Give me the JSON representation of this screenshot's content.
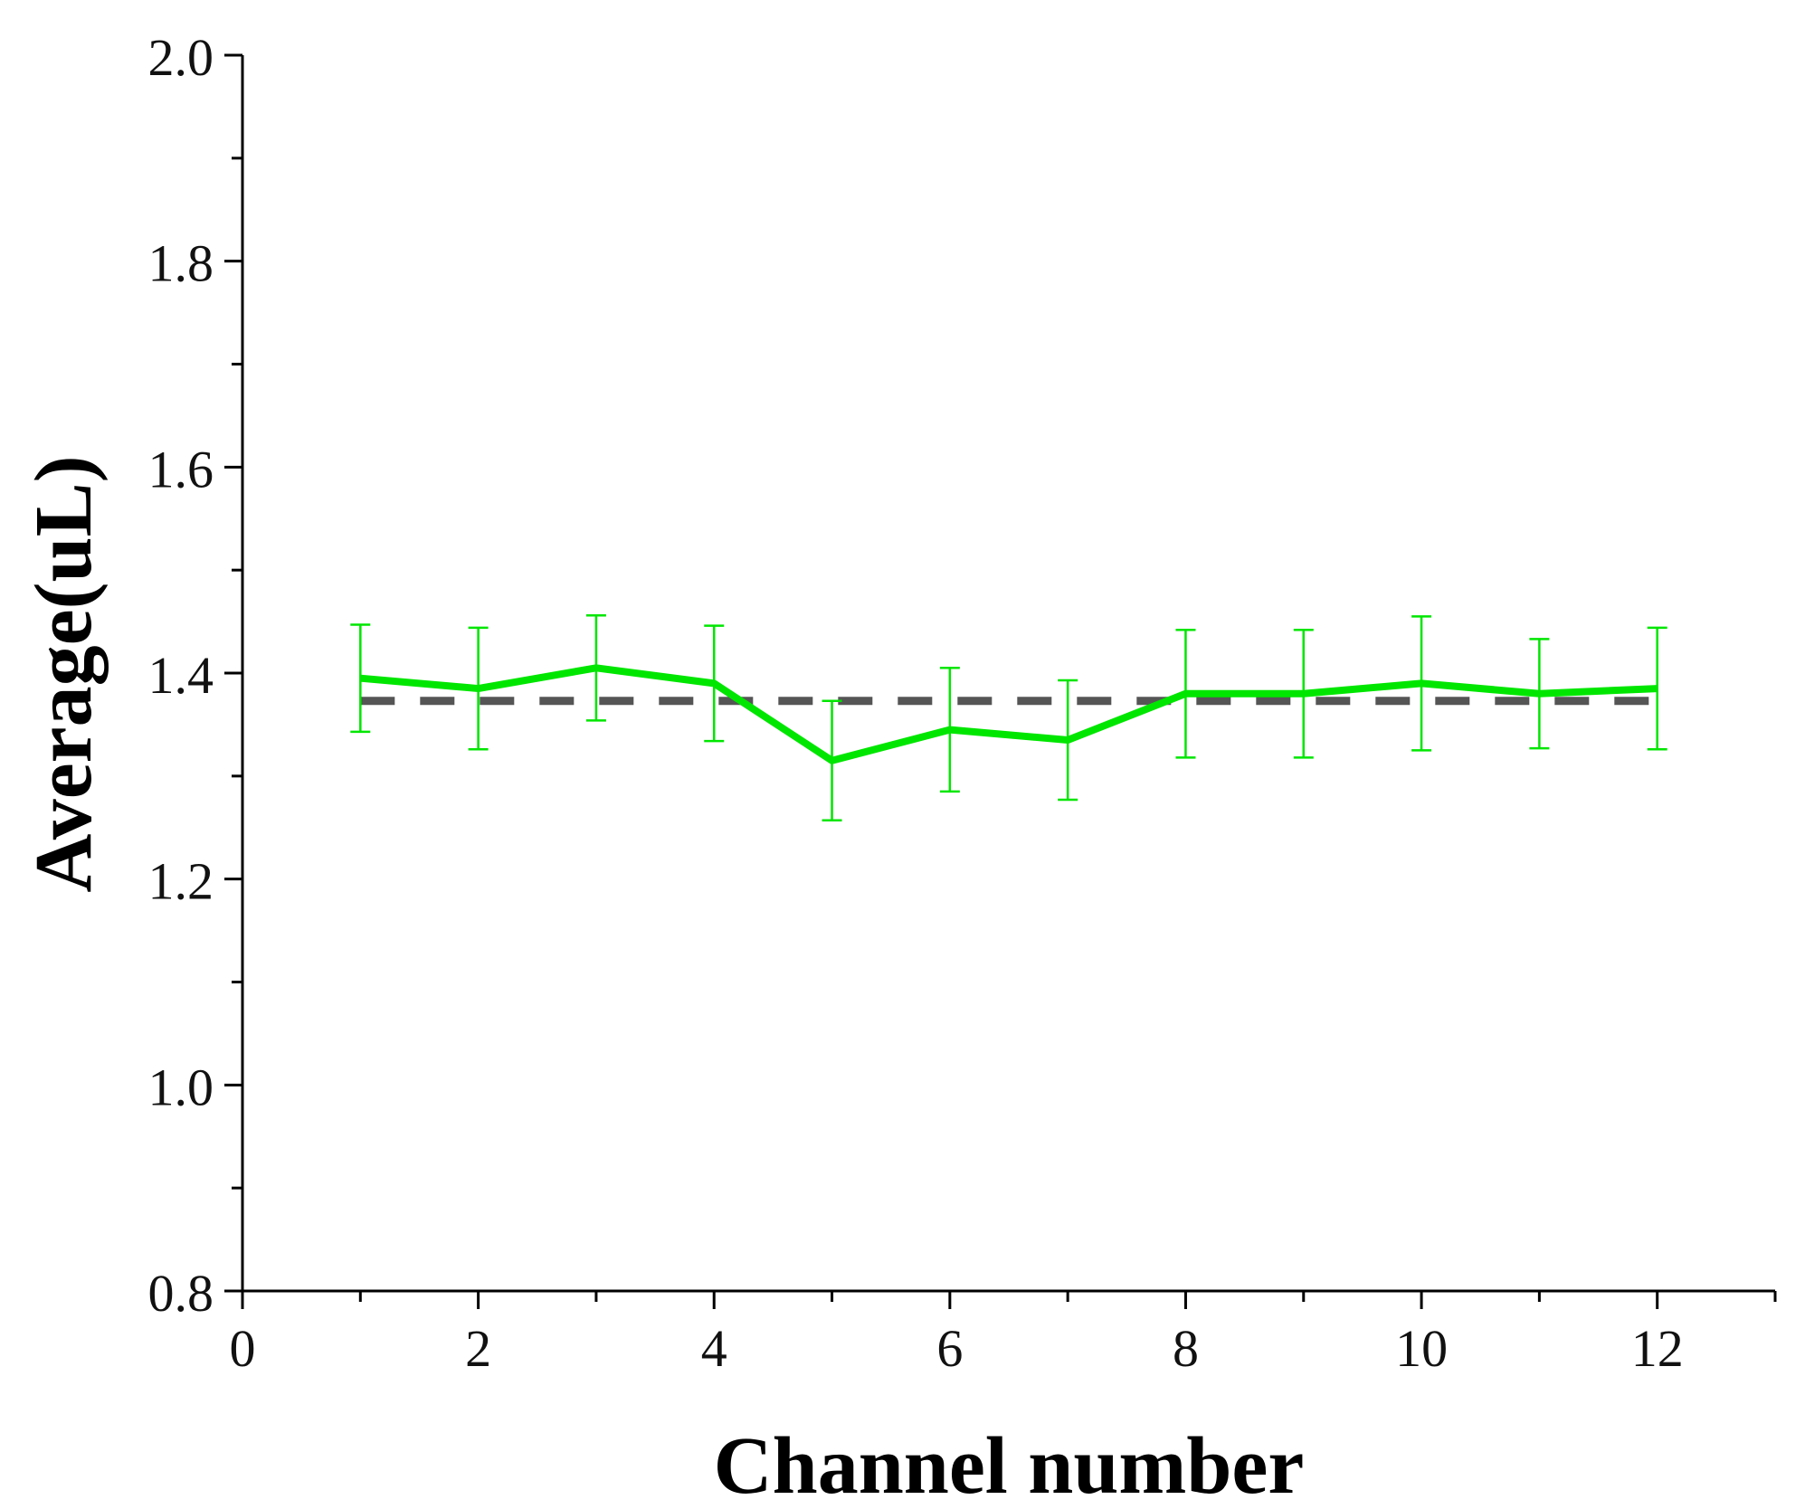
{
  "chart_data": {
    "type": "line",
    "title": "",
    "xlabel": "Channel number",
    "ylabel": "Average(uL)",
    "xlim": [
      0,
      13
    ],
    "ylim": [
      0.8,
      2.0
    ],
    "x_ticks": [
      0,
      2,
      4,
      6,
      8,
      10,
      12
    ],
    "y_ticks": [
      0.8,
      1.0,
      1.2,
      1.4,
      1.6,
      1.8,
      2.0
    ],
    "x_tick_labels": [
      "0",
      "2",
      "4",
      "6",
      "8",
      "10",
      "12"
    ],
    "y_tick_labels": [
      "0.8",
      "1.0",
      "1.2",
      "1.4",
      "1.6",
      "1.8",
      "2.0"
    ],
    "grid": false,
    "series": [
      {
        "color": "#00e600",
        "x": [
          1,
          2,
          3,
          4,
          5,
          6,
          7,
          8,
          9,
          10,
          11,
          12
        ],
        "y": [
          1.395,
          1.385,
          1.405,
          1.39,
          1.315,
          1.345,
          1.335,
          1.38,
          1.38,
          1.39,
          1.38,
          1.385
        ],
        "error": [
          0.052,
          0.059,
          0.051,
          0.056,
          0.058,
          0.06,
          0.058,
          0.062,
          0.062,
          0.065,
          0.053,
          0.059
        ]
      }
    ],
    "reference_line": {
      "y": 1.373,
      "x": [
        1,
        12
      ],
      "style": "dashed",
      "color": "#555555"
    }
  }
}
